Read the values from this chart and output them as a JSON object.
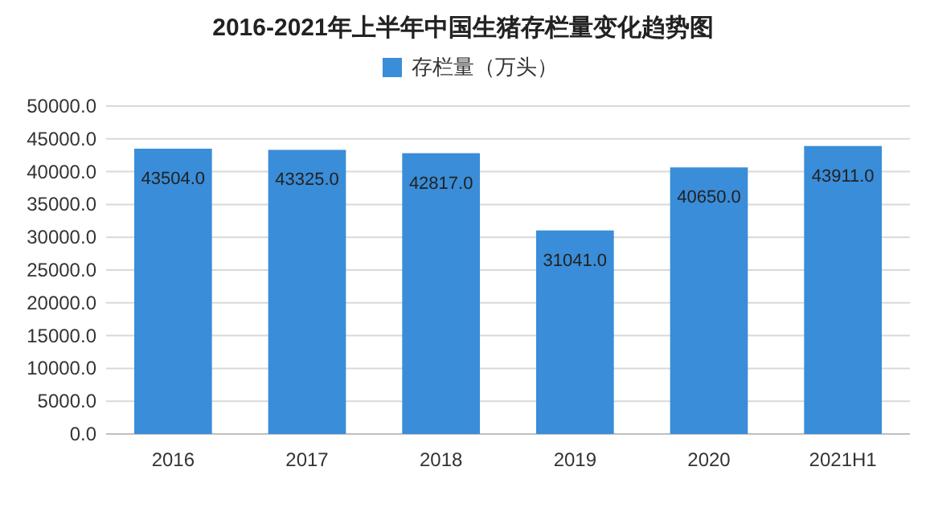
{
  "chart_data": {
    "type": "bar",
    "title": "2016-2021年上半年中国生猪存栏量变化趋势图",
    "categories": [
      "2016",
      "2017",
      "2018",
      "2019",
      "2020",
      "2021H1"
    ],
    "series": [
      {
        "name": "存栏量（万头）",
        "color": "#3a8dd8",
        "values": [
          43504.0,
          43325.0,
          42817.0,
          31041.0,
          40650.0,
          43911.0
        ],
        "value_labels": [
          "43504.0",
          "43325.0",
          "42817.0",
          "31041.0",
          "40650.0",
          "43911.0"
        ]
      }
    ],
    "ylim": [
      0,
      50000
    ],
    "yticks": [
      {
        "value": 0,
        "label": "0.0"
      },
      {
        "value": 5000,
        "label": "5000.0"
      },
      {
        "value": 10000,
        "label": "10000.0"
      },
      {
        "value": 15000,
        "label": "15000.0"
      },
      {
        "value": 20000,
        "label": "20000.0"
      },
      {
        "value": 25000,
        "label": "25000.0"
      },
      {
        "value": 30000,
        "label": "30000.0"
      },
      {
        "value": 35000,
        "label": "35000.0"
      },
      {
        "value": 40000,
        "label": "40000.0"
      },
      {
        "value": 45000,
        "label": "45000.0"
      },
      {
        "value": 50000,
        "label": "50000.0"
      }
    ],
    "grid": "y",
    "legend": "top"
  }
}
